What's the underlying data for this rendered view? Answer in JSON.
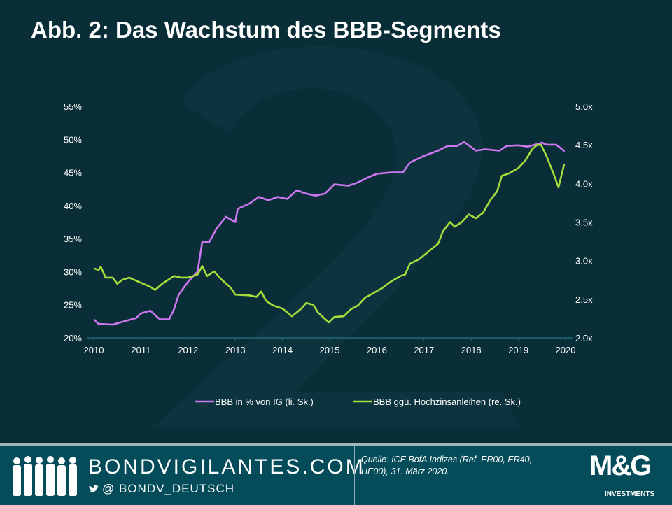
{
  "title": "Abb. 2: Das Wachstum des BBB-Segments",
  "chart_data": {
    "type": "line",
    "title": "Abb. 2: Das Wachstum des BBB-Segments",
    "xlim": [
      2010,
      2020
    ],
    "x_ticks": [
      "2010",
      "2011",
      "2012",
      "2013",
      "2014",
      "2015",
      "2016",
      "2017",
      "2018",
      "2019",
      "2020"
    ],
    "y_left": {
      "lim": [
        20,
        55
      ],
      "ticks": [
        "20%",
        "25%",
        "30%",
        "35%",
        "40%",
        "45%",
        "50%",
        "55%"
      ]
    },
    "y_right": {
      "lim": [
        2.0,
        5.0
      ],
      "ticks": [
        "2.0x",
        "2.5x",
        "3.0x",
        "3.5x",
        "4.0x",
        "4.5x",
        "5.0x"
      ]
    },
    "legend_position": "bottom",
    "series": [
      {
        "name": "BBB in % von IG  (li. Sk.)",
        "axis": "left",
        "color": "#cc77f0",
        "x": [
          2010.0,
          2010.1,
          2010.4,
          2010.6,
          2010.9,
          2011.0,
          2011.2,
          2011.4,
          2011.6,
          2011.7,
          2011.8,
          2012.0,
          2012.2,
          2012.3,
          2012.45,
          2012.6,
          2012.8,
          2013.0,
          2013.05,
          2013.3,
          2013.5,
          2013.7,
          2013.9,
          2014.1,
          2014.3,
          2014.5,
          2014.7,
          2014.9,
          2015.1,
          2015.4,
          2015.6,
          2015.8,
          2016.0,
          2016.3,
          2016.55,
          2016.7,
          2017.0,
          2017.3,
          2017.5,
          2017.7,
          2017.85,
          2018.1,
          2018.3,
          2018.6,
          2018.75,
          2019.0,
          2019.2,
          2019.5,
          2019.6,
          2019.8,
          2019.98
        ],
        "y": [
          22.8,
          22.1,
          22.0,
          22.4,
          23.0,
          23.7,
          24.1,
          22.8,
          22.8,
          24.3,
          26.5,
          28.5,
          30.0,
          34.5,
          34.5,
          36.5,
          38.3,
          37.5,
          39.5,
          40.3,
          41.3,
          40.8,
          41.3,
          41.0,
          42.3,
          41.8,
          41.5,
          41.8,
          43.2,
          43.0,
          43.5,
          44.2,
          44.8,
          45.0,
          45.0,
          46.5,
          47.5,
          48.3,
          49.0,
          49.0,
          49.6,
          48.3,
          48.5,
          48.3,
          49.0,
          49.1,
          48.9,
          49.5,
          49.2,
          49.2,
          48.2
        ]
      },
      {
        "name": "BBB ggü. Hochzinsanleihen  (re. Sk.)",
        "axis": "right",
        "color": "#a6dc3c",
        "x": [
          2010.0,
          2010.1,
          2010.15,
          2010.25,
          2010.4,
          2010.5,
          2010.6,
          2010.75,
          2010.9,
          2011.05,
          2011.2,
          2011.3,
          2011.45,
          2011.6,
          2011.7,
          2011.85,
          2012.0,
          2012.2,
          2012.3,
          2012.4,
          2012.55,
          2012.7,
          2012.9,
          2013.0,
          2013.3,
          2013.45,
          2013.55,
          2013.65,
          2013.8,
          2014.0,
          2014.2,
          2014.4,
          2014.5,
          2014.65,
          2014.75,
          2014.98,
          2015.1,
          2015.3,
          2015.45,
          2015.6,
          2015.75,
          2015.9,
          2016.1,
          2016.3,
          2016.5,
          2016.6,
          2016.7,
          2016.9,
          2017.1,
          2017.3,
          2017.4,
          2017.55,
          2017.65,
          2017.8,
          2017.95,
          2018.1,
          2018.25,
          2018.4,
          2018.55,
          2018.65,
          2018.8,
          2019.0,
          2019.15,
          2019.3,
          2019.4,
          2019.48,
          2019.6,
          2019.75,
          2019.85,
          2019.97
        ],
        "y": [
          2.9,
          2.88,
          2.92,
          2.78,
          2.78,
          2.7,
          2.75,
          2.78,
          2.74,
          2.7,
          2.66,
          2.62,
          2.7,
          2.76,
          2.8,
          2.78,
          2.78,
          2.82,
          2.93,
          2.8,
          2.86,
          2.76,
          2.65,
          2.56,
          2.55,
          2.53,
          2.6,
          2.48,
          2.42,
          2.38,
          2.28,
          2.38,
          2.45,
          2.43,
          2.33,
          2.2,
          2.27,
          2.28,
          2.37,
          2.42,
          2.52,
          2.57,
          2.64,
          2.73,
          2.8,
          2.82,
          2.96,
          3.02,
          3.12,
          3.22,
          3.38,
          3.5,
          3.44,
          3.5,
          3.6,
          3.55,
          3.62,
          3.78,
          3.9,
          4.1,
          4.13,
          4.2,
          4.3,
          4.45,
          4.5,
          4.5,
          4.35,
          4.12,
          3.95,
          4.25
        ]
      }
    ]
  },
  "footer": {
    "site": "BONDVIGILANTES.COM",
    "handle": "@  BONDV_DEUTSCH",
    "source": "Quelle: ICE BofA Indizes (Ref. ER00, ER40, HE00), 31. März 2020.",
    "logo_text": "M&G",
    "logo_sub": "INVESTMENTS"
  }
}
